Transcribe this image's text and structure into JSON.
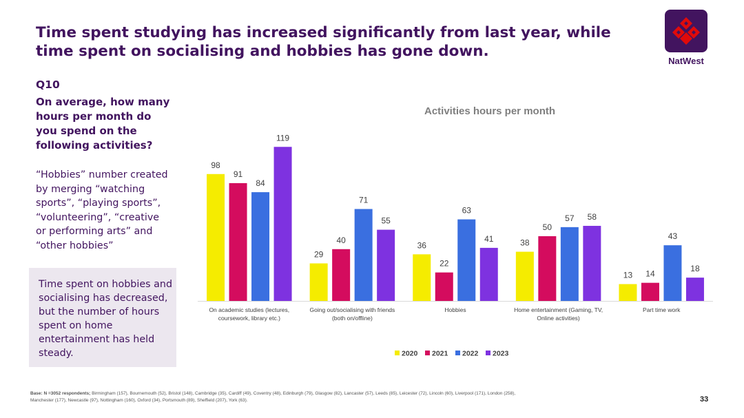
{
  "headline": "Time spent studying has increased significantly from last year, while time spent on socialising and hobbies has gone down.",
  "brand": {
    "name": "NatWest",
    "primary_color": "#42145f",
    "logo_color": "#e10a0a"
  },
  "question": {
    "id": "Q10",
    "text": "On average, how many hours per month do you spend on the following activities?"
  },
  "note": "“Hobbies” number created by merging “watching sports”, “playing sports”, “volunteering”, “creative or performing arts” and “other hobbies”",
  "callout": "Time spent on hobbies and socialising has decreased, but the number of hours spent on home entertainment has held steady.",
  "footnote": {
    "base_label": "Base: N =3052 respondents;",
    "base_detail": "Birmingham (157),  Bournemouth (52), Bristol (148), Cambridge (35), Cardiff (49), Coventry (48),  Edinburgh (79), Glasgow (82), Lancaster (57), Leeds (85), Leicester (72), Lincoln (60), Liverpool (171), London (258), Manchester (177), Newcastle (97), Nottingham (160), Oxford (34), Portsmouth (89), Sheffield (207), York (63)."
  },
  "page_number": "33",
  "chart_data": {
    "type": "bar",
    "title": "Activities hours per month",
    "xlabel": "",
    "ylabel": "",
    "ylim": [
      0,
      125
    ],
    "grid": false,
    "legend_position": "bottom",
    "categories": [
      [
        "On academic studies (lectures,",
        "coursework, library etc.)"
      ],
      [
        "Going out/socialising with friends",
        "(both on/offline)"
      ],
      [
        "Hobbies"
      ],
      [
        "Home entertainment (Gaming, TV,",
        "Online activities)"
      ],
      [
        "Part time work"
      ]
    ],
    "series": [
      {
        "name": "2020",
        "color": "#f5ec00",
        "values": [
          98,
          29,
          36,
          38,
          13
        ]
      },
      {
        "name": "2021",
        "color": "#d40c5e",
        "values": [
          91,
          40,
          22,
          50,
          14
        ]
      },
      {
        "name": "2022",
        "color": "#3a6fe0",
        "values": [
          84,
          71,
          63,
          57,
          43
        ]
      },
      {
        "name": "2023",
        "color": "#7e32e0",
        "values": [
          119,
          55,
          41,
          58,
          18
        ]
      }
    ]
  }
}
